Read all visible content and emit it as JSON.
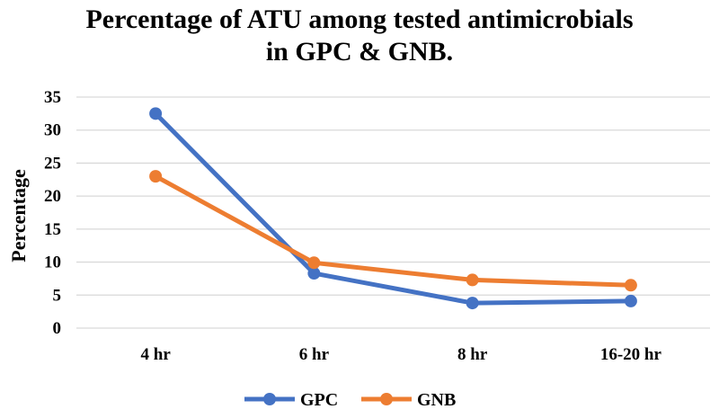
{
  "chart_data": {
    "type": "line",
    "title_line1": "Percentage of ATU among tested antimicrobials",
    "title_line2": "in GPC & GNB.",
    "xlabel": "",
    "ylabel": "Percentage",
    "categories": [
      "4 hr",
      "6 hr",
      "8 hr",
      "16-20 hr"
    ],
    "ylim": [
      0,
      35
    ],
    "yticks": [
      "0",
      "5",
      "10",
      "15",
      "20",
      "25",
      "30",
      "35"
    ],
    "grid": true,
    "legend_position": "bottom",
    "series": [
      {
        "name": "GPC",
        "color": "#4472C4",
        "values": [
          32.5,
          8.3,
          3.8,
          4.1
        ]
      },
      {
        "name": "GNB",
        "color": "#ED7D31",
        "values": [
          23.0,
          9.9,
          7.3,
          6.5
        ]
      }
    ]
  }
}
